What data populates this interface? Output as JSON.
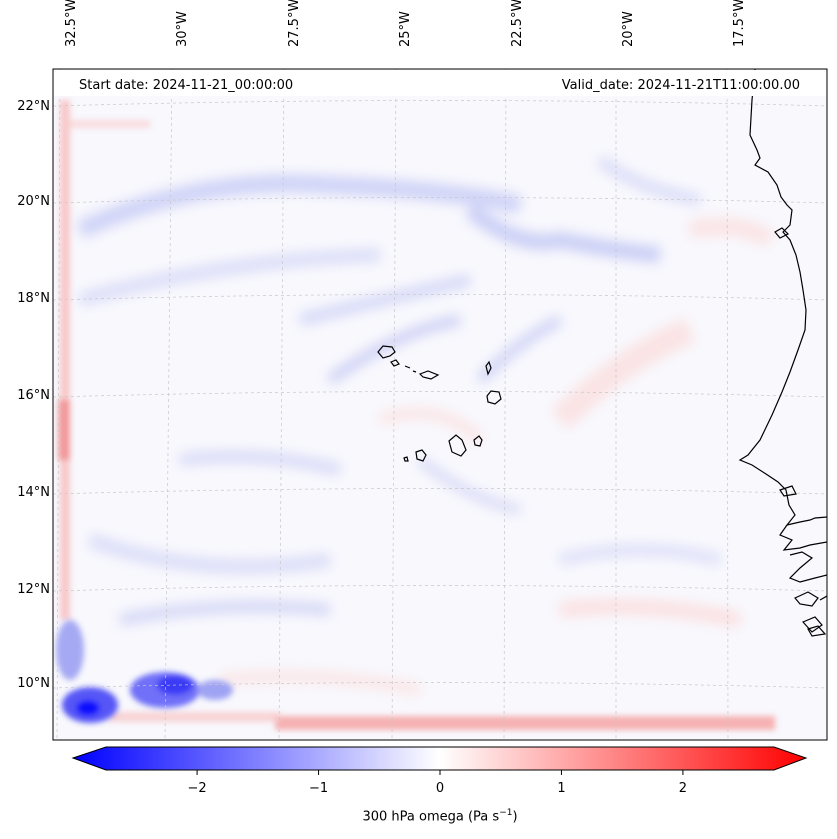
{
  "map": {
    "projection": "lambert",
    "extent": {
      "lon_min": -32.8,
      "lon_max": -15.6,
      "lat_min": 8.7,
      "lat_max": 22.7
    },
    "start_date": "Start date: 2024-11-21_00:00:00",
    "valid_date": "Valid_date: 2024-11-21T11:00:00.00",
    "variable": "300 hPa omega",
    "units": "Pa s",
    "unit_exponent": "−1",
    "lon_labels": [
      "32.5°W",
      "30°W",
      "27.5°W",
      "25°W",
      "22.5°W",
      "20°W",
      "17.5°W"
    ],
    "lat_labels": [
      "22°N",
      "20°N",
      "18°N",
      "16°N",
      "14°N",
      "12°N",
      "10°N"
    ],
    "features": [
      "Cape Verde islands",
      "West African coastline (Mauritania, Senegal, Gambia, Guinea-Bissau)"
    ],
    "colors": {
      "neg": "#0000ff",
      "zero": "#ffffff",
      "pos": "#ff0000",
      "coast": "#000000",
      "grid": "#c8c8c8"
    }
  },
  "colorbar": {
    "vmin": -2.75,
    "vmax": 2.75,
    "tick_labels": [
      "−2",
      "−1",
      "0",
      "1",
      "2"
    ],
    "tick_values": [
      -2,
      -1,
      0,
      1,
      2
    ],
    "extend": "both"
  }
}
